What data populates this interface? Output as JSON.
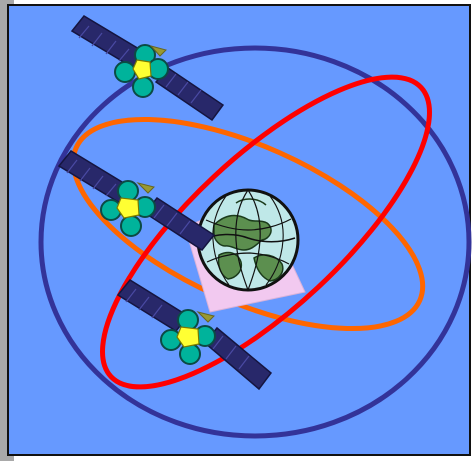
{
  "diagram": {
    "colors": {
      "background": "#6699ff",
      "left_shadow": "#a9a9a9",
      "border": "#111111",
      "orbit_blue": "#333399",
      "orbit_red": "#ff0000",
      "orbit_orange": "#ff6600",
      "solar_panel": "#28286a",
      "solar_panel_grid": "#4a4aa3",
      "satellite_body": "#00b39b",
      "satellite_core": "#ffff33",
      "earth_ocean": "#bfe8e8",
      "earth_land": "#5c8f4f",
      "highlight_square": "#f2c9f0"
    },
    "icons": [
      "satellite-icon",
      "globe-icon"
    ]
  }
}
